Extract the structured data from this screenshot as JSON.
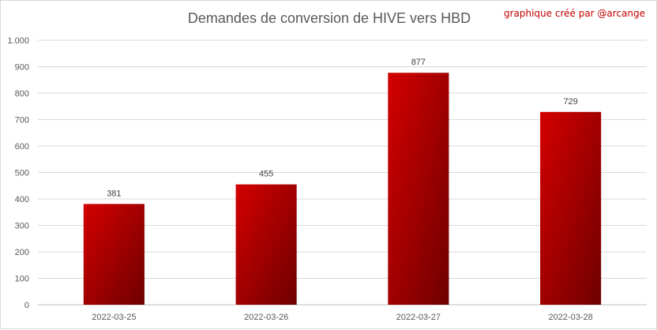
{
  "chart_data": {
    "type": "bar",
    "title": "Demandes de conversion de HIVE vers HBD",
    "credit": "graphique créé par @arcange",
    "categories": [
      "2022-03-25",
      "2022-03-26",
      "2022-03-27",
      "2022-03-28"
    ],
    "values": [
      381,
      455,
      877,
      729
    ],
    "data_labels": [
      "381",
      "455",
      "877",
      "729"
    ],
    "ylim": [
      0,
      1000
    ],
    "yticks": [
      0,
      100,
      200,
      300,
      400,
      500,
      600,
      700,
      800,
      900,
      1000
    ],
    "ytick_labels": [
      "0",
      "100",
      "200",
      "300",
      "400",
      "500",
      "600",
      "700",
      "800",
      "900",
      "1.000"
    ],
    "grid": true,
    "legend": "none",
    "colors": {
      "bar_light": "#d40000",
      "bar_dark": "#6e0000",
      "grid": "#d9d9d9",
      "axis_text": "#595959",
      "credit": "#c00000"
    }
  }
}
